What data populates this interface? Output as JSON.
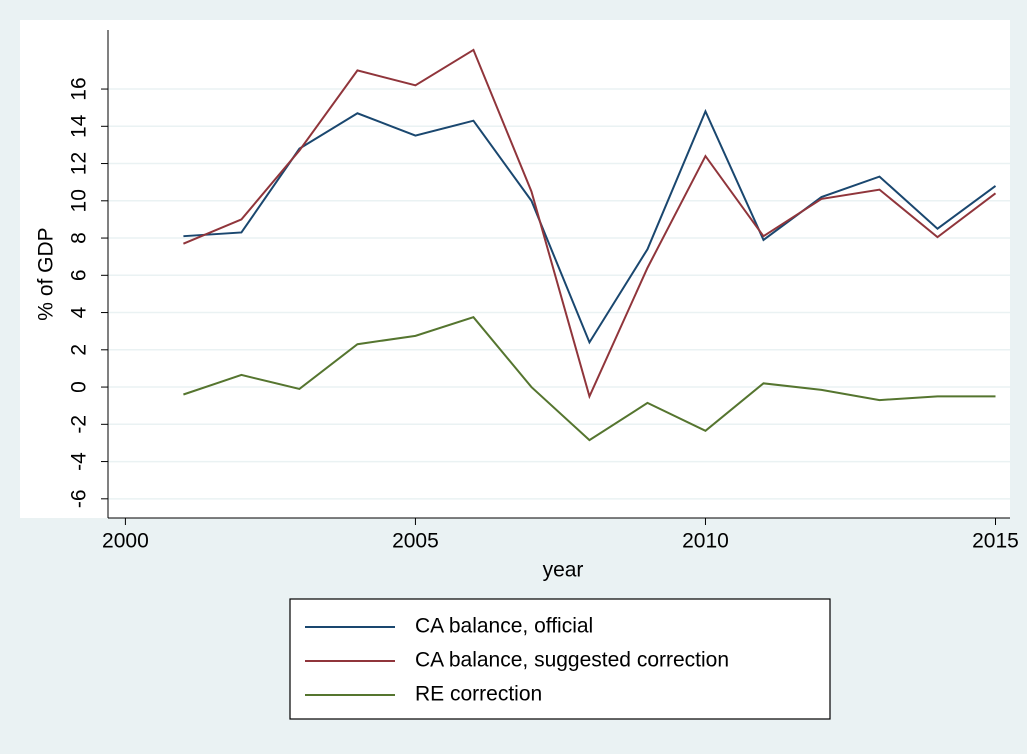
{
  "chart_data": {
    "type": "line",
    "xlabel": "year",
    "ylabel": "% of GDP",
    "x": [
      2001,
      2002,
      2003,
      2004,
      2005,
      2006,
      2007,
      2008,
      2009,
      2010,
      2011,
      2012,
      2013,
      2014,
      2015
    ],
    "series": [
      {
        "name": "CA balance, official",
        "color": "#1a476f",
        "values": [
          8.1,
          8.3,
          12.8,
          14.7,
          13.5,
          14.3,
          10.0,
          2.4,
          7.4,
          14.8,
          7.9,
          10.2,
          11.3,
          8.5,
          10.8
        ]
      },
      {
        "name": "CA balance, suggested correction",
        "color": "#90353b",
        "values": [
          7.7,
          9.0,
          12.7,
          17.0,
          16.2,
          18.1,
          10.5,
          -0.5,
          6.4,
          12.4,
          8.1,
          10.1,
          10.6,
          8.05,
          10.4
        ]
      },
      {
        "name": "RE correction",
        "color": "#55752f",
        "values": [
          -0.4,
          0.65,
          -0.1,
          2.3,
          2.75,
          3.75,
          0.0,
          -2.85,
          -0.85,
          -2.35,
          0.2,
          -0.15,
          -0.7,
          -0.5,
          -0.5
        ]
      }
    ],
    "xlim": [
      1999.7,
      2015.25
    ],
    "xticks": [
      2000,
      2005,
      2010,
      2015
    ],
    "ylim": [
      -7.03,
      19.17
    ],
    "yticks": [
      -6,
      -4,
      -2,
      0,
      2,
      4,
      6,
      8,
      10,
      12,
      14,
      16
    ],
    "grid": true,
    "legend": "bottom"
  }
}
